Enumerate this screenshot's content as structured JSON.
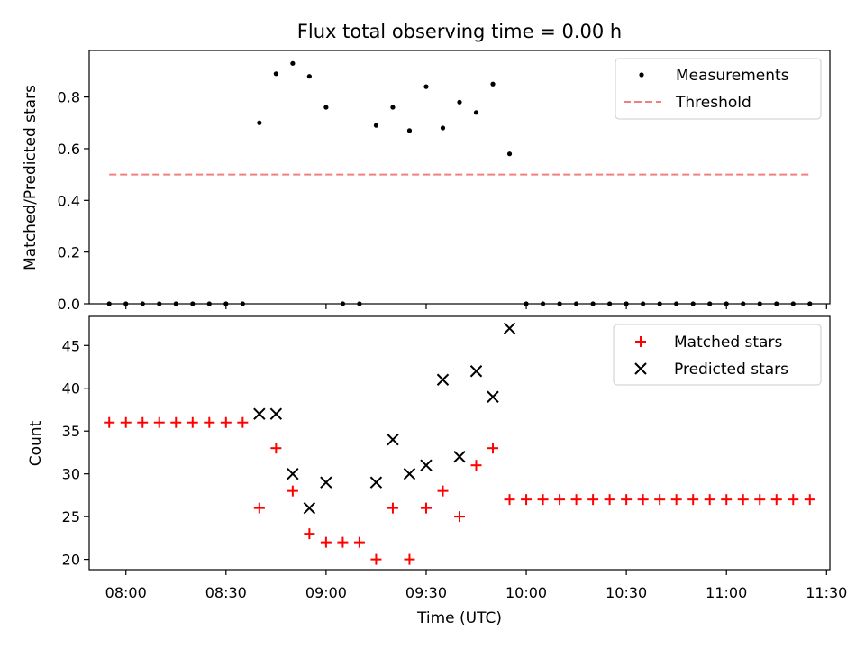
{
  "title": "Flux total observing time = 0.00 h",
  "chart_data": [
    {
      "type": "scatter",
      "ylabel": "Matched/Predicted stars",
      "xlabel": "",
      "xlim": [
        "07:49",
        "11:31"
      ],
      "ylim": [
        0,
        0.98
      ],
      "yticks": [
        0.0,
        0.2,
        0.4,
        0.6,
        0.8
      ],
      "ytick_labels": [
        "0.0",
        "0.2",
        "0.4",
        "0.6",
        "0.8"
      ],
      "legend_loc": "upper right",
      "colors": {
        "measurements": "#000000",
        "threshold": "#f08080"
      },
      "series": [
        {
          "name": "Measurements",
          "marker": "dot",
          "x": [
            "07:55",
            "08:00",
            "08:05",
            "08:10",
            "08:15",
            "08:20",
            "08:25",
            "08:30",
            "08:35",
            "08:40",
            "08:45",
            "08:50",
            "08:55",
            "09:00",
            "09:05",
            "09:10",
            "09:15",
            "09:20",
            "09:25",
            "09:30",
            "09:35",
            "09:40",
            "09:45",
            "09:50",
            "09:55",
            "10:00",
            "10:05",
            "10:10",
            "10:15",
            "10:20",
            "10:25",
            "10:30",
            "10:35",
            "10:40",
            "10:45",
            "10:50",
            "10:55",
            "11:00",
            "11:05",
            "11:10",
            "11:15",
            "11:20",
            "11:25"
          ],
          "y": [
            0,
            0,
            0,
            0,
            0,
            0,
            0,
            0,
            0,
            0.7,
            0.89,
            0.93,
            0.88,
            0.76,
            0,
            0,
            0.69,
            0.76,
            0.67,
            0.84,
            0.68,
            0.78,
            0.74,
            0.85,
            0.58,
            0,
            0,
            0,
            0,
            0,
            0,
            0,
            0,
            0,
            0,
            0,
            0,
            0,
            0,
            0,
            0,
            0,
            0
          ]
        },
        {
          "name": "Threshold",
          "style": "dashed-line",
          "x": [
            "07:55",
            "11:25"
          ],
          "y": [
            0.5,
            0.5
          ]
        }
      ]
    },
    {
      "type": "scatter",
      "ylabel": "Count",
      "xlabel": "Time (UTC)",
      "xlim": [
        "07:49",
        "11:31"
      ],
      "ylim": [
        18.8,
        48.4
      ],
      "yticks": [
        20,
        25,
        30,
        35,
        40,
        45
      ],
      "ytick_labels": [
        "20",
        "25",
        "30",
        "35",
        "40",
        "45"
      ],
      "xticks": [
        "08:00",
        "08:30",
        "09:00",
        "09:30",
        "10:00",
        "10:30",
        "11:00",
        "11:30"
      ],
      "legend_loc": "upper right",
      "colors": {
        "matched": "#ff0000",
        "predicted": "#000000"
      },
      "series": [
        {
          "name": "Matched stars",
          "marker": "plus",
          "x": [
            "07:55",
            "08:00",
            "08:05",
            "08:10",
            "08:15",
            "08:20",
            "08:25",
            "08:30",
            "08:35",
            "08:40",
            "08:45",
            "08:50",
            "08:55",
            "09:00",
            "09:05",
            "09:10",
            "09:15",
            "09:20",
            "09:25",
            "09:30",
            "09:35",
            "09:40",
            "09:45",
            "09:50",
            "09:55",
            "10:00",
            "10:05",
            "10:10",
            "10:15",
            "10:20",
            "10:25",
            "10:30",
            "10:35",
            "10:40",
            "10:45",
            "10:50",
            "10:55",
            "11:00",
            "11:05",
            "11:10",
            "11:15",
            "11:20",
            "11:25"
          ],
          "y": [
            36,
            36,
            36,
            36,
            36,
            36,
            36,
            36,
            36,
            26,
            33,
            28,
            23,
            22,
            22,
            22,
            20,
            26,
            20,
            26,
            28,
            25,
            31,
            33,
            27,
            27,
            27,
            27,
            27,
            27,
            27,
            27,
            27,
            27,
            27,
            27,
            27,
            27,
            27,
            27,
            27,
            27,
            27
          ]
        },
        {
          "name": "Predicted stars",
          "marker": "x",
          "x": [
            "08:40",
            "08:45",
            "08:50",
            "08:55",
            "09:00",
            "09:15",
            "09:20",
            "09:25",
            "09:30",
            "09:35",
            "09:40",
            "09:45",
            "09:50",
            "09:55"
          ],
          "y": [
            37,
            37,
            30,
            26,
            29,
            29,
            34,
            30,
            31,
            41,
            32,
            42,
            39,
            47
          ]
        }
      ]
    }
  ]
}
